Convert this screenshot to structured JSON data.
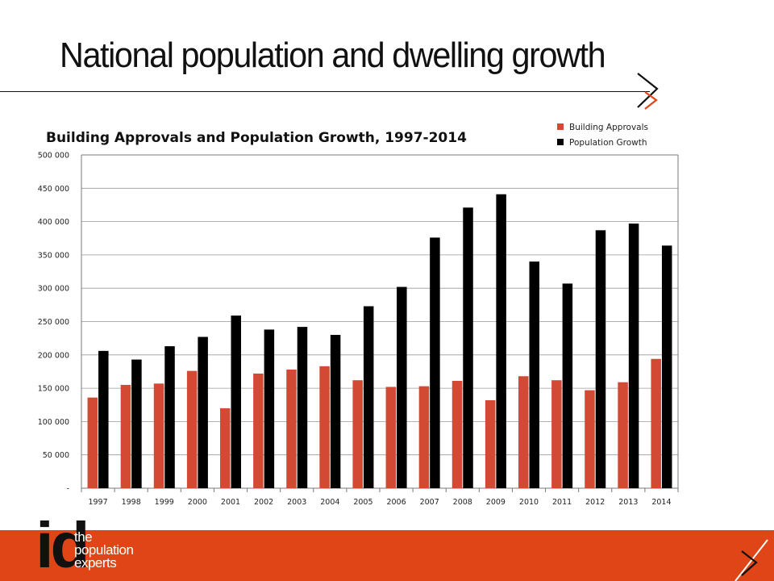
{
  "slide": {
    "title": "National population and dwelling growth"
  },
  "logo": {
    "mark_dot": ".",
    "mark_text": "id",
    "tagline": [
      "the",
      "population",
      "experts"
    ]
  },
  "colors": {
    "accent": "#df4516",
    "text": "#111111",
    "bar_building": "#d24a34",
    "bar_population": "#000000"
  },
  "chart_data": {
    "type": "bar",
    "title": "Building Approvals and Population Growth, 1997-2014",
    "xlabel": "",
    "ylabel": "",
    "ylim": [
      0,
      500000
    ],
    "yticks": [
      {
        "value": 0,
        "label": "-"
      },
      {
        "value": 50000,
        "label": "50 000"
      },
      {
        "value": 100000,
        "label": "100 000"
      },
      {
        "value": 150000,
        "label": "150 000"
      },
      {
        "value": 200000,
        "label": "200 000"
      },
      {
        "value": 250000,
        "label": "250 000"
      },
      {
        "value": 300000,
        "label": "300 000"
      },
      {
        "value": 350000,
        "label": "350 000"
      },
      {
        "value": 400000,
        "label": "400 000"
      },
      {
        "value": 450000,
        "label": "450 000"
      },
      {
        "value": 500000,
        "label": "500 000"
      }
    ],
    "grid": true,
    "legend_position": "top-right",
    "categories": [
      "1997",
      "1998",
      "1999",
      "2000",
      "2001",
      "2002",
      "2003",
      "2004",
      "2005",
      "2006",
      "2007",
      "2008",
      "2009",
      "2010",
      "2011",
      "2012",
      "2013",
      "2014"
    ],
    "series": [
      {
        "name": "Building Approvals",
        "color": "#d24a34",
        "values": [
          136000,
          155000,
          157000,
          176000,
          120000,
          172000,
          178000,
          183000,
          162000,
          152000,
          153000,
          161000,
          132000,
          168000,
          162000,
          147000,
          159000,
          194000
        ]
      },
      {
        "name": "Population Growth",
        "color": "#000000",
        "values": [
          206000,
          193000,
          213000,
          227000,
          259000,
          238000,
          242000,
          230000,
          273000,
          302000,
          376000,
          421000,
          441000,
          340000,
          307000,
          387000,
          397000,
          364000
        ]
      }
    ]
  }
}
